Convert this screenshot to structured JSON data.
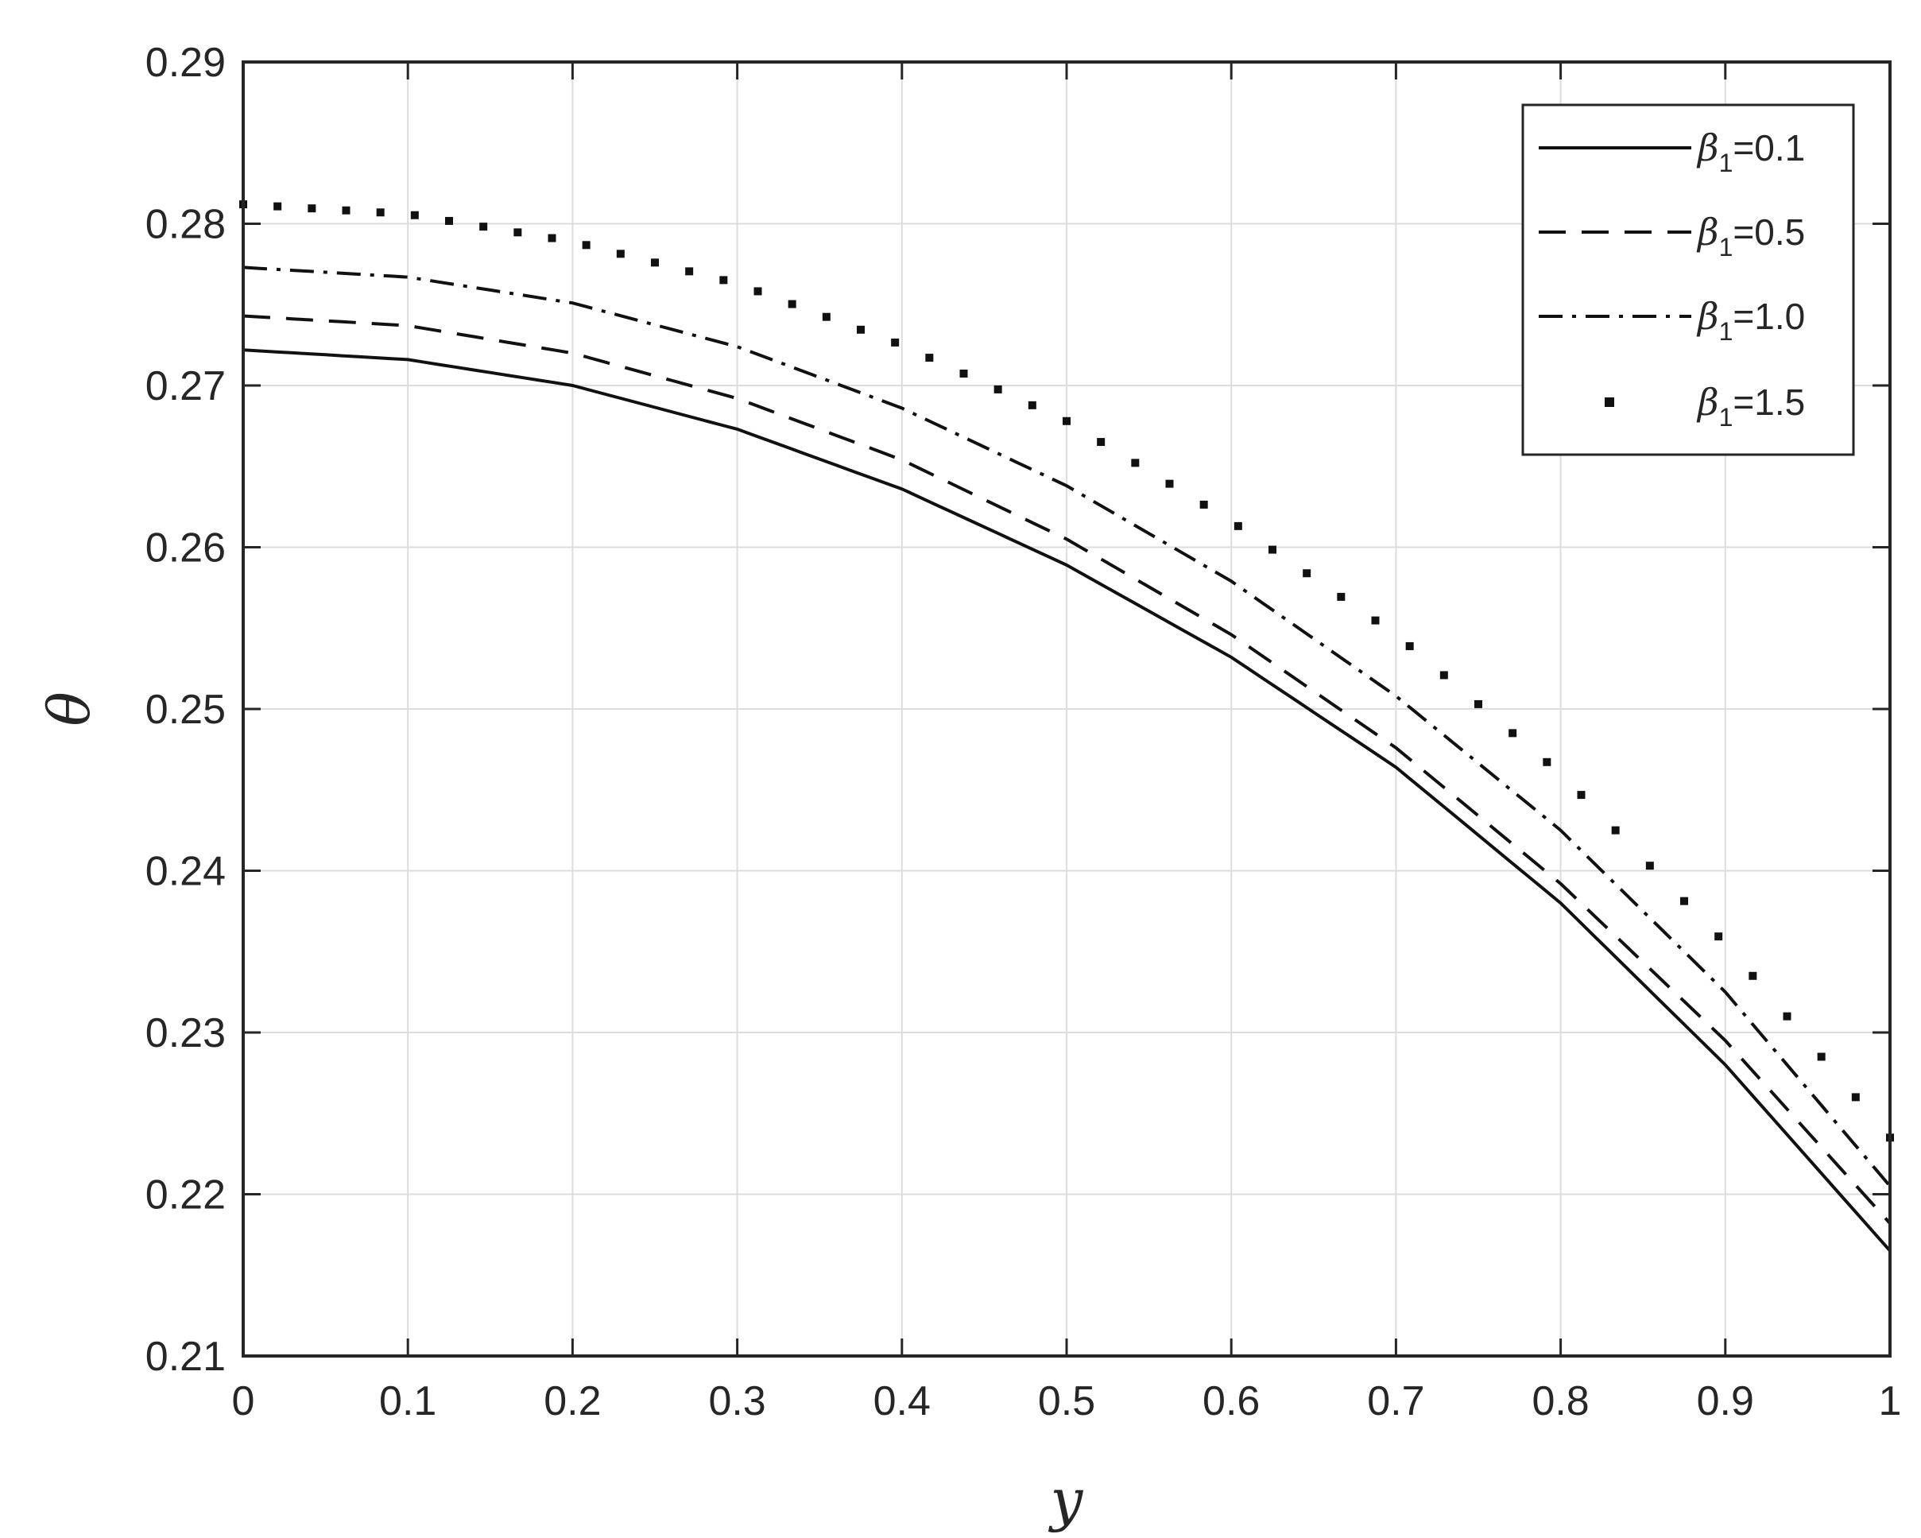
{
  "chart_data": {
    "type": "line",
    "title": "",
    "xlabel": "y",
    "ylabel": "θ",
    "xlim": [
      0,
      1
    ],
    "ylim": [
      0.21,
      0.29
    ],
    "xticks": [
      "0",
      "0.1",
      "0.2",
      "0.3",
      "0.4",
      "0.5",
      "0.6",
      "0.7",
      "0.8",
      "0.9",
      "1"
    ],
    "yticks": [
      "0.21",
      "0.22",
      "0.23",
      "0.24",
      "0.25",
      "0.26",
      "0.27",
      "0.28",
      "0.29"
    ],
    "grid": true,
    "legend_position": "top-right",
    "x": [
      0,
      0.1,
      0.2,
      0.3,
      0.4,
      0.5,
      0.6,
      0.7,
      0.8,
      0.9,
      1.0
    ],
    "series": [
      {
        "name": "β1=0.1",
        "legend_symbol": "β",
        "legend_sub": "1",
        "legend_value": "=0.1",
        "style": "solid",
        "values": [
          0.2722,
          0.2716,
          0.27,
          0.2673,
          0.2636,
          0.2589,
          0.2532,
          0.2464,
          0.238,
          0.228,
          0.2165
        ]
      },
      {
        "name": "β1=0.5",
        "legend_symbol": "β",
        "legend_sub": "1",
        "legend_value": "=0.5",
        "style": "dashed",
        "values": [
          0.2743,
          0.2737,
          0.272,
          0.2692,
          0.2654,
          0.2605,
          0.2546,
          0.2476,
          0.2392,
          0.2295,
          0.2182
        ]
      },
      {
        "name": "β1=1.0",
        "legend_symbol": "β",
        "legend_sub": "1",
        "legend_value": "=1.0",
        "style": "dashdot",
        "values": [
          0.2773,
          0.2767,
          0.2751,
          0.2724,
          0.2686,
          0.2638,
          0.2579,
          0.2508,
          0.2425,
          0.2325,
          0.2205
        ]
      },
      {
        "name": "β1=1.5",
        "legend_symbol": "β",
        "legend_sub": "1",
        "legend_value": "=1.5",
        "style": "dotted",
        "values": [
          0.2812,
          0.2806,
          0.2789,
          0.2763,
          0.2725,
          0.2678,
          0.2616,
          0.2546,
          0.246,
          0.2355,
          0.2235
        ]
      }
    ]
  }
}
